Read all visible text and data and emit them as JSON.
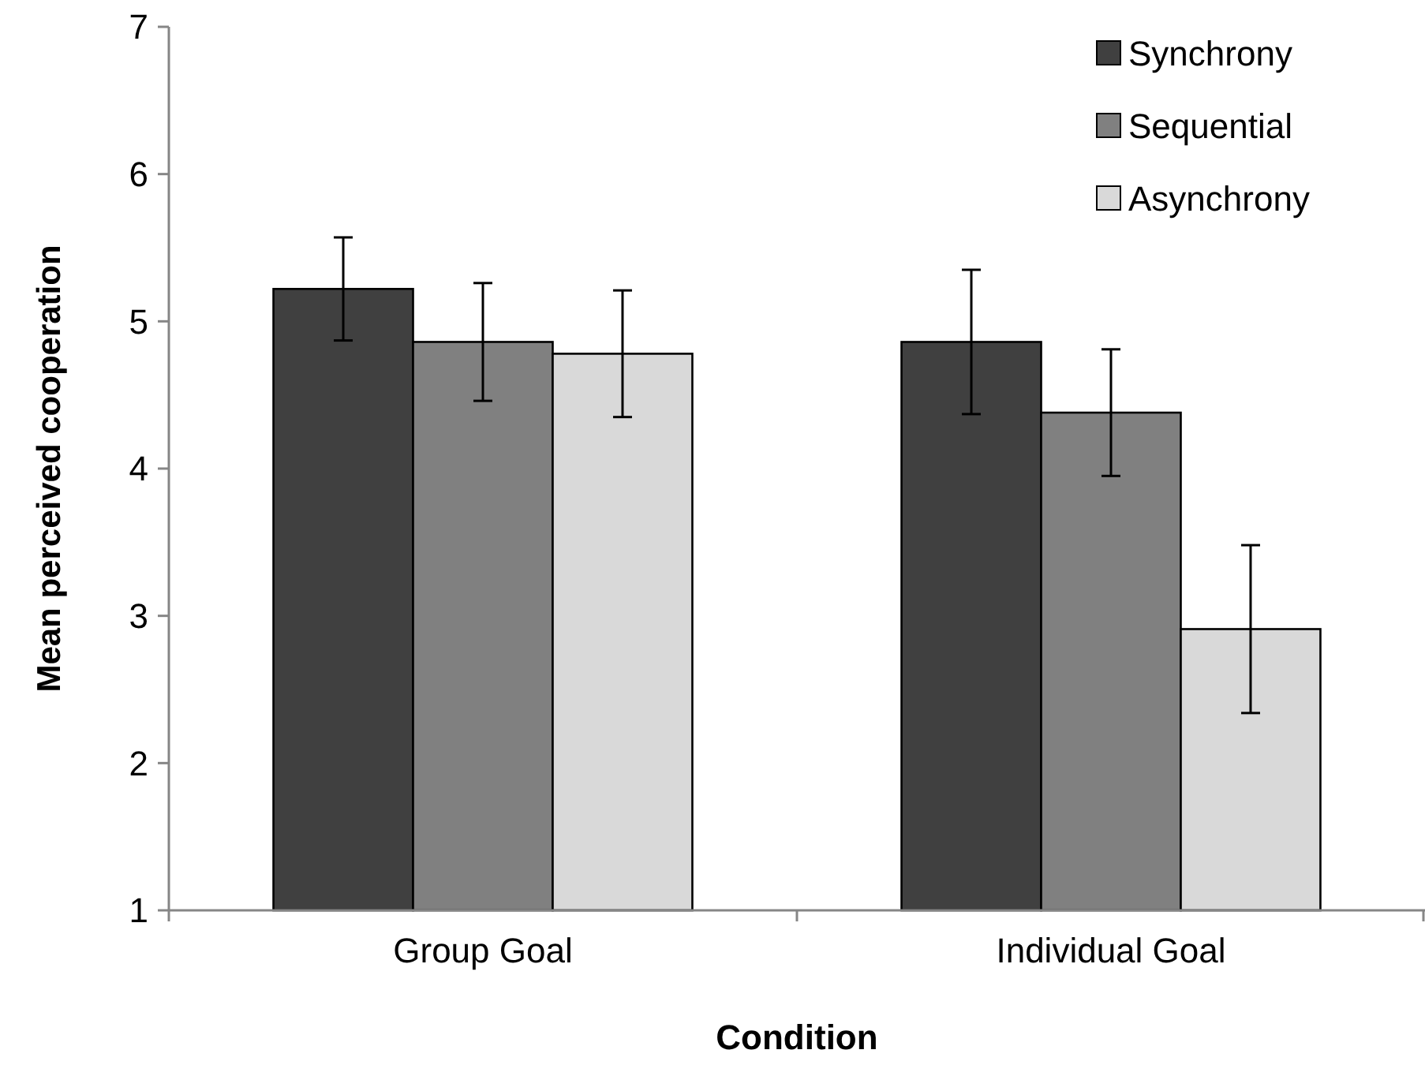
{
  "chart_data": {
    "type": "bar",
    "xlabel": "Condition",
    "ylabel": "Mean perceived cooperation",
    "categories": [
      "Group Goal",
      "Individual Goal"
    ],
    "series": [
      {
        "name": "Synchrony",
        "color": "#404040",
        "values": [
          5.22,
          4.86
        ],
        "errors": [
          0.35,
          0.49
        ]
      },
      {
        "name": "Sequential",
        "color": "#808080",
        "values": [
          4.86,
          4.38
        ],
        "errors": [
          0.4,
          0.43
        ]
      },
      {
        "name": "Asynchrony",
        "color": "#d9d9d9",
        "values": [
          4.78,
          2.91
        ],
        "errors": [
          0.43,
          0.57
        ]
      }
    ],
    "ylim": [
      1,
      7
    ],
    "yticks": [
      1,
      2,
      3,
      4,
      5,
      6,
      7
    ],
    "grid": false,
    "legend": "top right"
  }
}
